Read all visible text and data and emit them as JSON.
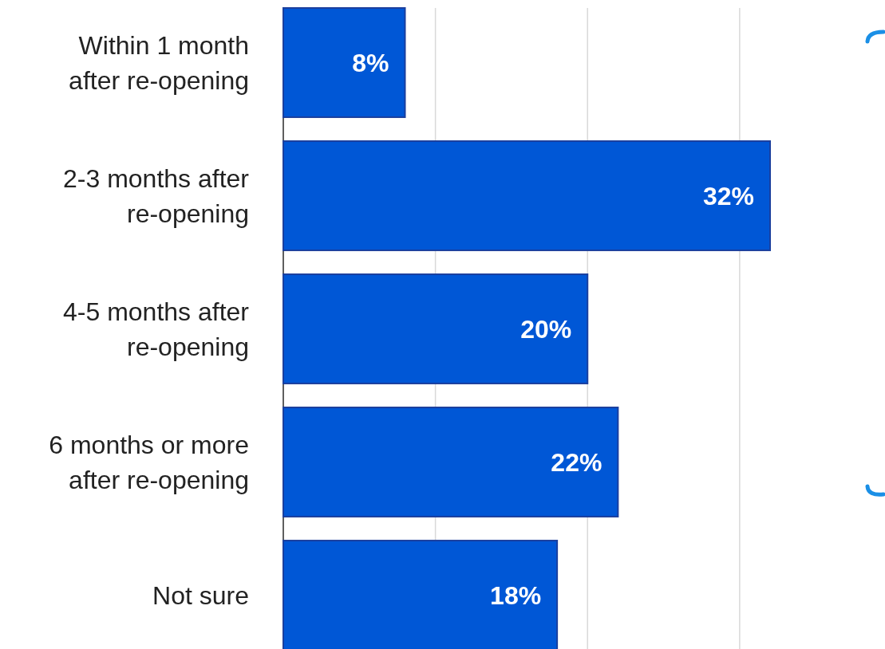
{
  "chart_data": {
    "type": "bar",
    "orientation": "horizontal",
    "categories": [
      "Within 1 month after re-opening",
      "2-3 months after re-opening",
      "4-5 months after re-opening",
      "6 months or more after re-opening",
      "Not sure"
    ],
    "values": [
      8,
      32,
      20,
      22,
      18
    ],
    "color": "#0057d6",
    "data_labels": true,
    "value_labels": [
      "8%",
      "32%",
      "20%",
      "22%",
      "18%"
    ],
    "xticks": [
      {
        "value": 0,
        "label": null
      },
      {
        "value": 10,
        "label": null
      },
      {
        "value": 20,
        "label": null
      },
      {
        "value": 30,
        "label": null
      }
    ],
    "grid": "x",
    "tick_labels": "y"
  }
}
